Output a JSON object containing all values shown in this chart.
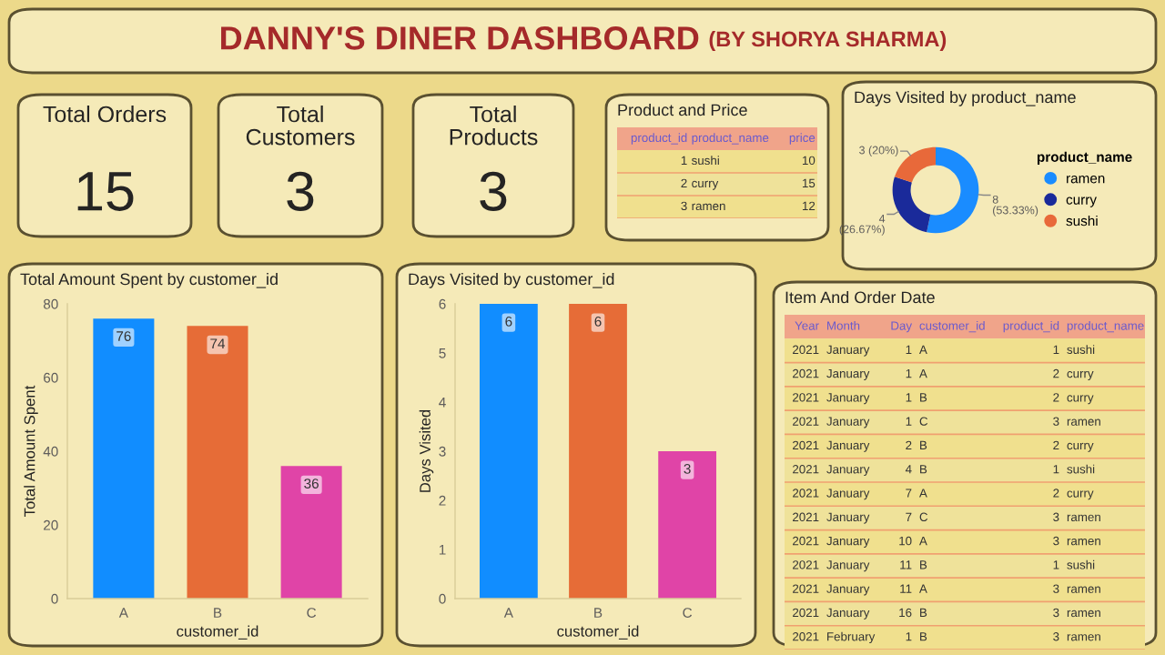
{
  "chart_data": [
    {
      "type": "other",
      "title": "DANNY'S DINER DASHBOARD",
      "subtitle": "(BY SHORYA SHARMA)"
    },
    {
      "type": "other",
      "title": "Total Orders",
      "annotations": [
        "15"
      ]
    },
    {
      "type": "other",
      "title": "Total\nCustomers",
      "annotations": [
        "3"
      ]
    },
    {
      "type": "other",
      "title": "Total\nProducts",
      "annotations": [
        "3"
      ]
    },
    {
      "type": "other",
      "title": "Product and Price",
      "categories": [
        "product_id",
        "product_name",
        "price"
      ],
      "cell_labels": [
        [
          "1",
          "sushi",
          "10"
        ],
        [
          "2",
          "curry",
          "15"
        ],
        [
          "3",
          "ramen",
          "12"
        ]
      ]
    },
    {
      "type": "donut",
      "title": "Days Visited by product_name",
      "categories": [
        "ramen",
        "curry",
        "sushi"
      ],
      "values": [
        8,
        4,
        3
      ],
      "colors": [
        "#1a8cff",
        "#1a2a9a",
        "#e8693a"
      ],
      "value_labels": [
        "8\n(53.33%)",
        "4\n(26.67%)",
        "3 (20%)"
      ],
      "legend_title": "product_name",
      "legend": "right"
    },
    {
      "type": "bar",
      "title": "Total Amount Spent by customer_id",
      "categories": [
        "A",
        "B",
        "C"
      ],
      "values": [
        76,
        74,
        36
      ],
      "colors": [
        "#118dff",
        "#e66c37",
        "#e044a7"
      ],
      "xlabel": "customer_id",
      "ylabel": "Total Amount Spent",
      "ylim": [
        0,
        80
      ],
      "yticks": [
        0,
        20,
        40,
        60,
        80
      ],
      "data_labels": true,
      "grid": false
    },
    {
      "type": "bar",
      "title": "Days Visited by customer_id",
      "categories": [
        "A",
        "B",
        "C"
      ],
      "values": [
        6,
        6,
        3
      ],
      "colors": [
        "#118dff",
        "#e66c37",
        "#e044a7"
      ],
      "xlabel": "customer_id",
      "ylabel": "Days Visited",
      "ylim": [
        0,
        6
      ],
      "yticks": [
        0,
        1,
        2,
        3,
        4,
        5,
        6
      ],
      "data_labels": true,
      "grid": false
    },
    {
      "type": "other",
      "title": "Item And Order Date",
      "categories": [
        "Year",
        "Month",
        "Day",
        "customer_id",
        "product_id",
        "product_name"
      ],
      "cell_labels": [
        [
          "2021",
          "January",
          "1",
          "A",
          "1",
          "sushi"
        ],
        [
          "2021",
          "January",
          "1",
          "A",
          "2",
          "curry"
        ],
        [
          "2021",
          "January",
          "1",
          "B",
          "2",
          "curry"
        ],
        [
          "2021",
          "January",
          "1",
          "C",
          "3",
          "ramen"
        ],
        [
          "2021",
          "January",
          "2",
          "B",
          "2",
          "curry"
        ],
        [
          "2021",
          "January",
          "4",
          "B",
          "1",
          "sushi"
        ],
        [
          "2021",
          "January",
          "7",
          "A",
          "2",
          "curry"
        ],
        [
          "2021",
          "January",
          "7",
          "C",
          "3",
          "ramen"
        ],
        [
          "2021",
          "January",
          "10",
          "A",
          "3",
          "ramen"
        ],
        [
          "2021",
          "January",
          "11",
          "B",
          "1",
          "sushi"
        ],
        [
          "2021",
          "January",
          "11",
          "A",
          "3",
          "ramen"
        ],
        [
          "2021",
          "January",
          "16",
          "B",
          "3",
          "ramen"
        ],
        [
          "2021",
          "February",
          "1",
          "B",
          "3",
          "ramen"
        ]
      ]
    }
  ]
}
